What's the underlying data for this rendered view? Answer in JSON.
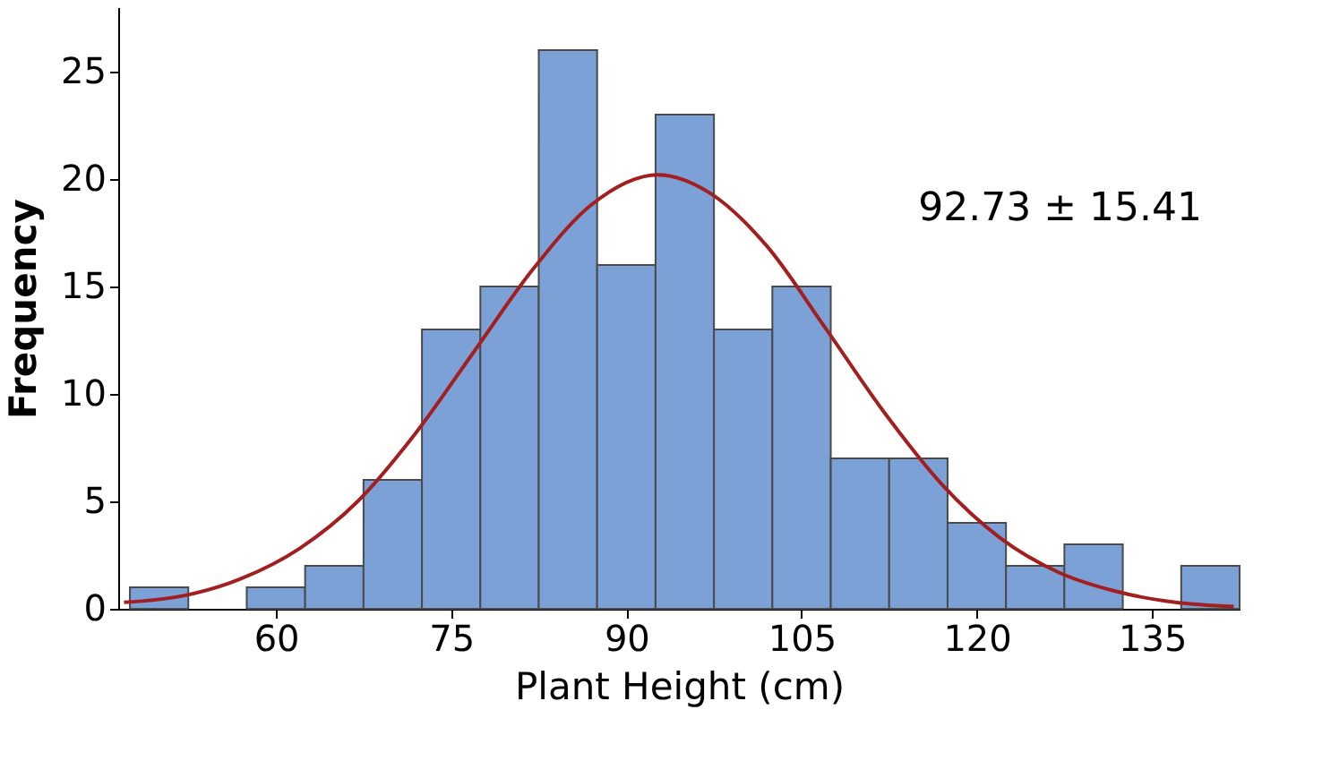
{
  "chart_data": {
    "type": "histogram",
    "xlabel": "Plant Height (cm)",
    "ylabel": "Frequency",
    "bins": [
      47.5,
      52.5,
      57.5,
      62.5,
      67.5,
      72.5,
      77.5,
      82.5,
      87.5,
      92.5,
      97.5,
      102.5,
      107.5,
      112.5,
      117.5,
      122.5,
      127.5,
      132.5,
      137.5,
      142.5
    ],
    "values": [
      1,
      0,
      1,
      2,
      6,
      13,
      15,
      26,
      16,
      23,
      13,
      15,
      7,
      7,
      4,
      2,
      3,
      0,
      2
    ],
    "color": "#7ba1d6",
    "series": [
      {
        "type": "line",
        "color": "#a31f1f",
        "x": [
          47,
          52,
          57,
          62,
          67,
          72,
          77,
          82,
          87,
          92.73,
          97,
          102,
          107,
          112,
          117,
          122,
          127,
          132,
          137,
          142
        ],
        "values": [
          0.3,
          0.6,
          1.4,
          2.8,
          5.0,
          8.2,
          12.0,
          15.8,
          18.8,
          20.2,
          19.4,
          16.9,
          13.1,
          9.2,
          5.8,
          3.3,
          1.7,
          0.8,
          0.3,
          0.1
        ]
      }
    ],
    "annotations": [
      "92.73 ± 15.41"
    ],
    "xlim": [
      46.5,
      142.5
    ],
    "xticks": [
      60,
      75,
      90,
      105,
      120,
      135
    ],
    "ylim": [
      0,
      28
    ],
    "yticks": [
      0,
      5,
      10,
      15,
      20,
      25
    ],
    "grid": false
  }
}
